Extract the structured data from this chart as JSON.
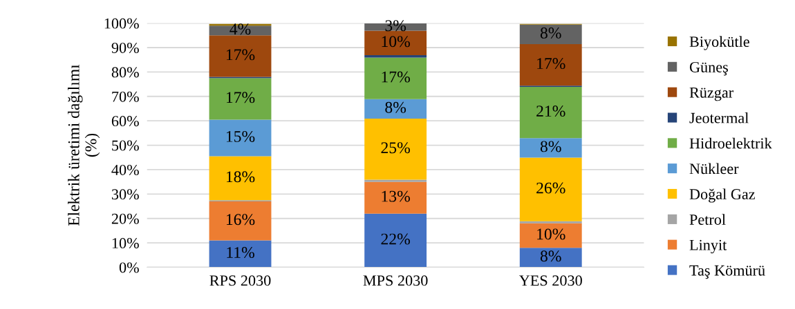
{
  "chart_data": {
    "type": "bar",
    "stacked": true,
    "ylabel": "Elektrik üretimi dağılımı\n(%)",
    "categories": [
      "RPS 2030",
      "MPS 2030",
      "YES 2030"
    ],
    "ylim": [
      0,
      100
    ],
    "yticks": [
      {
        "value": 0,
        "label": "0%"
      },
      {
        "value": 10,
        "label": "10%"
      },
      {
        "value": 20,
        "label": "20%"
      },
      {
        "value": 30,
        "label": "30%"
      },
      {
        "value": 40,
        "label": "40%"
      },
      {
        "value": 50,
        "label": "50%"
      },
      {
        "value": 60,
        "label": "60%"
      },
      {
        "value": 70,
        "label": "70%"
      },
      {
        "value": 80,
        "label": "80%"
      },
      {
        "value": 90,
        "label": "90%"
      },
      {
        "value": 100,
        "label": "100%"
      }
    ],
    "grid": "y",
    "legend": "right",
    "series": [
      {
        "name": "Taş Kömürü",
        "color": "#4472c4",
        "values": [
          11,
          22,
          8
        ],
        "value_labels": [
          "11%",
          "22%",
          "8%"
        ]
      },
      {
        "name": "Linyit",
        "color": "#ed7d31",
        "values": [
          16,
          13,
          10
        ],
        "value_labels": [
          "16%",
          "13%",
          "10%"
        ]
      },
      {
        "name": "Petrol",
        "color": "#a5a5a5",
        "values": [
          0.5,
          0.9,
          0.9
        ],
        "value_labels": [
          null,
          null,
          null
        ]
      },
      {
        "name": "Doğal Gaz",
        "color": "#ffc000",
        "values": [
          18,
          25,
          26
        ],
        "value_labels": [
          "18%",
          "25%",
          "26%"
        ]
      },
      {
        "name": "Nükleer",
        "color": "#5b9bd5",
        "values": [
          15,
          8,
          8
        ],
        "value_labels": [
          "15%",
          "8%",
          "8%"
        ]
      },
      {
        "name": "Hidroelektrik",
        "color": "#70ad47",
        "values": [
          17,
          17,
          21
        ],
        "value_labels": [
          "17%",
          "17%",
          "21%"
        ]
      },
      {
        "name": "Jeotermal",
        "color": "#264478",
        "values": [
          0.5,
          1,
          0.5
        ],
        "value_labels": [
          null,
          null,
          null
        ]
      },
      {
        "name": "Rüzgar",
        "color": "#9e480e",
        "values": [
          17,
          10,
          17
        ],
        "value_labels": [
          "17%",
          "10%",
          "17%"
        ]
      },
      {
        "name": "Güneş",
        "color": "#636363",
        "values": [
          4,
          3,
          8
        ],
        "value_labels": [
          "4%",
          "3%",
          "8%"
        ]
      },
      {
        "name": "Biyokütle",
        "color": "#997300",
        "values": [
          0.7,
          0,
          0.3
        ],
        "value_labels": [
          null,
          null,
          null
        ]
      }
    ]
  }
}
